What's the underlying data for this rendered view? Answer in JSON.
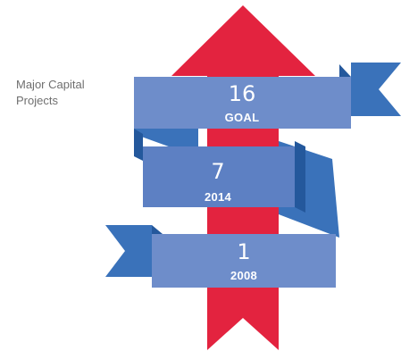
{
  "label": {
    "line1": "Major Capital",
    "line2": "Projects"
  },
  "ribbons": [
    {
      "number": "16",
      "caption": "GOAL"
    },
    {
      "number": "7",
      "caption": "2014"
    },
    {
      "number": "1",
      "caption": "2008"
    }
  ],
  "colors": {
    "arrow": "#e3233f",
    "ribbon_face": "#6e8dca",
    "ribbon_face_mid": "#5d80c3",
    "ribbon_tail": "#3a72ba",
    "ribbon_fold": "#24589c",
    "label_text": "#6f6f6f"
  }
}
